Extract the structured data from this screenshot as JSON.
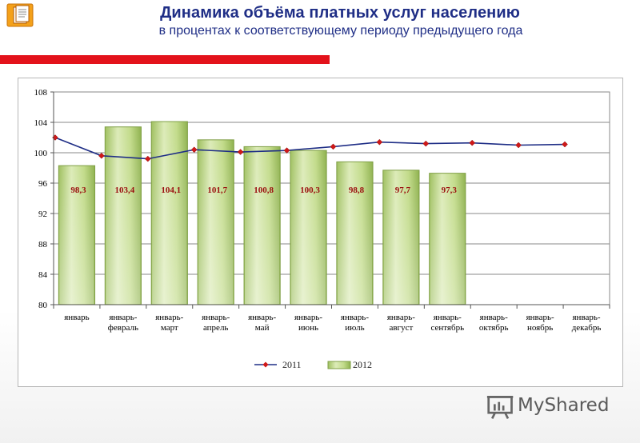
{
  "header": {
    "title": "Динамика объёма платных услуг населению",
    "subtitle": "в процентах к соответствующему периоду предыдущего года",
    "accent_color": "#e3121b",
    "title_color": "#1f2e86",
    "icon": "document-icon"
  },
  "watermark": {
    "text": "MyShared",
    "icon": "presentation-board-icon"
  },
  "chart_data": {
    "type": "bar",
    "ylim": [
      80,
      108
    ],
    "yticks": [
      80,
      84,
      88,
      92,
      96,
      100,
      104,
      108
    ],
    "grid": true,
    "legend_position": "bottom",
    "categories": [
      [
        "январь"
      ],
      [
        "январь-",
        "февраль"
      ],
      [
        "январь-",
        "март"
      ],
      [
        "январь-",
        "апрель"
      ],
      [
        "январь-",
        "май"
      ],
      [
        "январь-",
        "июнь"
      ],
      [
        "январь-",
        "июль"
      ],
      [
        "январь-",
        "август"
      ],
      [
        "январь-",
        "сентябрь"
      ],
      [
        "январь-",
        "октябрь"
      ],
      [
        "январь-",
        "ноябрь"
      ],
      [
        "январь-",
        "декабрь"
      ]
    ],
    "series": [
      {
        "name": "2012",
        "type": "bar",
        "color": "#a8c96a",
        "values": [
          98.3,
          103.4,
          104.1,
          101.7,
          100.8,
          100.3,
          98.8,
          97.7,
          97.3,
          null,
          null,
          null
        ],
        "labels": [
          "98,3",
          "103,4",
          "104,1",
          "101,7",
          "100,8",
          "100,3",
          "98,8",
          "97,7",
          "97,3",
          null,
          null,
          null
        ]
      },
      {
        "name": "2011",
        "type": "line",
        "color": "#1f2e86",
        "marker_color": "#d01818",
        "values": [
          102.0,
          99.6,
          99.2,
          100.4,
          100.1,
          100.3,
          100.8,
          101.4,
          101.2,
          101.3,
          101.0,
          101.1
        ]
      }
    ],
    "legend": [
      "2011",
      "2012"
    ]
  }
}
